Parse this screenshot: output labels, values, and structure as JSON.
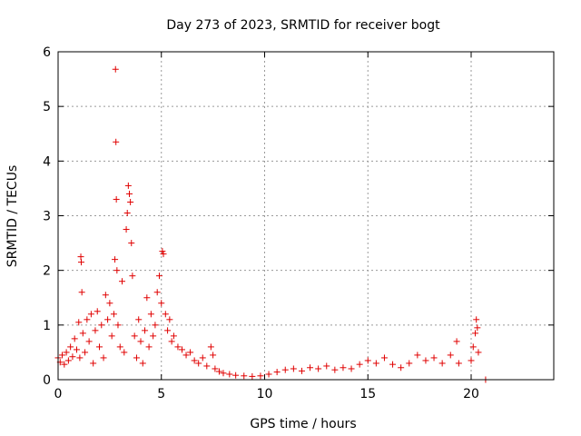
{
  "chart_data": {
    "type": "scatter",
    "title": "Day 273 of 2023, SRMTID for receiver bogt",
    "xlabel": "GPS time / hours",
    "ylabel": "SRMTID / TECUs",
    "xlim": [
      0,
      24
    ],
    "ylim": [
      0,
      6
    ],
    "x_ticks": [
      0,
      5,
      10,
      15,
      20
    ],
    "y_ticks": [
      0,
      1,
      2,
      3,
      4,
      5,
      6
    ],
    "grid": true,
    "marker": "+",
    "marker_color": "#e00000",
    "series": [
      {
        "name": "SRMTID",
        "points": [
          [
            0.0,
            0.4
          ],
          [
            0.1,
            0.32
          ],
          [
            0.2,
            0.45
          ],
          [
            0.3,
            0.28
          ],
          [
            0.4,
            0.5
          ],
          [
            0.5,
            0.35
          ],
          [
            0.6,
            0.6
          ],
          [
            0.7,
            0.42
          ],
          [
            0.8,
            0.75
          ],
          [
            0.9,
            0.55
          ],
          [
            1.0,
            1.05
          ],
          [
            1.05,
            0.4
          ],
          [
            1.1,
            2.25
          ],
          [
            1.12,
            2.15
          ],
          [
            1.15,
            1.6
          ],
          [
            1.2,
            0.85
          ],
          [
            1.3,
            0.5
          ],
          [
            1.4,
            1.1
          ],
          [
            1.5,
            0.7
          ],
          [
            1.6,
            1.2
          ],
          [
            1.7,
            0.3
          ],
          [
            1.8,
            0.9
          ],
          [
            1.9,
            1.25
          ],
          [
            2.0,
            0.6
          ],
          [
            2.1,
            1.0
          ],
          [
            2.2,
            0.4
          ],
          [
            2.3,
            1.55
          ],
          [
            2.4,
            1.1
          ],
          [
            2.5,
            1.4
          ],
          [
            2.6,
            0.8
          ],
          [
            2.7,
            1.2
          ],
          [
            2.75,
            2.2
          ],
          [
            2.78,
            5.68
          ],
          [
            2.8,
            4.35
          ],
          [
            2.82,
            3.3
          ],
          [
            2.85,
            2.0
          ],
          [
            2.9,
            1.0
          ],
          [
            3.0,
            0.6
          ],
          [
            3.1,
            1.8
          ],
          [
            3.2,
            0.5
          ],
          [
            3.3,
            2.75
          ],
          [
            3.35,
            3.05
          ],
          [
            3.4,
            3.55
          ],
          [
            3.45,
            3.4
          ],
          [
            3.5,
            3.25
          ],
          [
            3.55,
            2.5
          ],
          [
            3.6,
            1.9
          ],
          [
            3.7,
            0.8
          ],
          [
            3.8,
            0.4
          ],
          [
            3.9,
            1.1
          ],
          [
            4.0,
            0.7
          ],
          [
            4.1,
            0.3
          ],
          [
            4.2,
            0.9
          ],
          [
            4.3,
            1.5
          ],
          [
            4.4,
            0.6
          ],
          [
            4.5,
            1.2
          ],
          [
            4.6,
            0.8
          ],
          [
            4.7,
            1.0
          ],
          [
            4.8,
            1.6
          ],
          [
            4.9,
            1.9
          ],
          [
            5.0,
            1.4
          ],
          [
            5.05,
            2.35
          ],
          [
            5.1,
            2.3
          ],
          [
            5.2,
            1.2
          ],
          [
            5.3,
            0.9
          ],
          [
            5.4,
            1.1
          ],
          [
            5.5,
            0.7
          ],
          [
            5.6,
            0.8
          ],
          [
            5.8,
            0.6
          ],
          [
            6.0,
            0.55
          ],
          [
            6.2,
            0.45
          ],
          [
            6.4,
            0.5
          ],
          [
            6.6,
            0.35
          ],
          [
            6.8,
            0.3
          ],
          [
            7.0,
            0.4
          ],
          [
            7.2,
            0.25
          ],
          [
            7.4,
            0.6
          ],
          [
            7.5,
            0.45
          ],
          [
            7.6,
            0.2
          ],
          [
            7.8,
            0.15
          ],
          [
            8.0,
            0.12
          ],
          [
            8.3,
            0.1
          ],
          [
            8.6,
            0.08
          ],
          [
            9.0,
            0.07
          ],
          [
            9.4,
            0.06
          ],
          [
            9.8,
            0.07
          ],
          [
            10.2,
            0.1
          ],
          [
            10.6,
            0.14
          ],
          [
            11.0,
            0.18
          ],
          [
            11.4,
            0.2
          ],
          [
            11.8,
            0.16
          ],
          [
            12.2,
            0.22
          ],
          [
            12.6,
            0.2
          ],
          [
            13.0,
            0.25
          ],
          [
            13.4,
            0.18
          ],
          [
            13.8,
            0.22
          ],
          [
            14.2,
            0.2
          ],
          [
            14.6,
            0.28
          ],
          [
            15.0,
            0.35
          ],
          [
            15.4,
            0.3
          ],
          [
            15.8,
            0.4
          ],
          [
            16.2,
            0.28
          ],
          [
            16.6,
            0.22
          ],
          [
            17.0,
            0.3
          ],
          [
            17.4,
            0.45
          ],
          [
            17.8,
            0.35
          ],
          [
            18.2,
            0.4
          ],
          [
            18.6,
            0.3
          ],
          [
            19.0,
            0.45
          ],
          [
            19.3,
            0.7
          ],
          [
            19.4,
            0.3
          ],
          [
            20.0,
            0.35
          ],
          [
            20.1,
            0.6
          ],
          [
            20.2,
            0.85
          ],
          [
            20.25,
            1.1
          ],
          [
            20.3,
            0.95
          ],
          [
            20.35,
            0.5
          ],
          [
            20.7,
            0.0
          ]
        ]
      }
    ]
  }
}
